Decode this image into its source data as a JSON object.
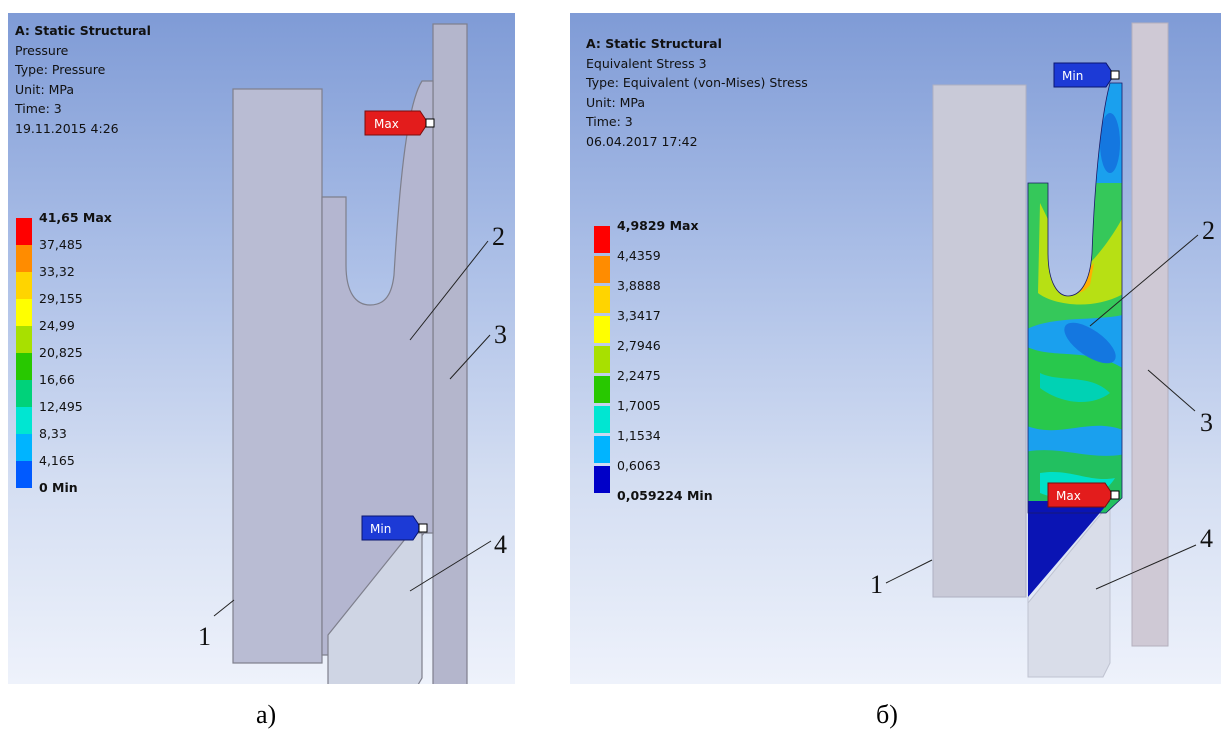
{
  "panel_a": {
    "title": "A: Static Structural",
    "lines": [
      "Pressure",
      "Type: Pressure",
      "Unit: MPa",
      "Time: 3",
      "19.11.2015 4:26"
    ],
    "legend": [
      "41,65 Max",
      "37,485",
      "33,32",
      "29,155",
      "24,99",
      "20,825",
      "16,66",
      "12,495",
      "8,33",
      "4,165",
      "0 Min"
    ],
    "max_tag": "Max",
    "min_tag": "Min",
    "part_labels": [
      "1",
      "2",
      "3",
      "4"
    ],
    "caption": "а)"
  },
  "panel_b": {
    "title": "A: Static Structural",
    "lines": [
      "Equivalent Stress 3",
      "Type: Equivalent (von-Mises) Stress",
      "Unit: MPa",
      "Time: 3",
      "06.04.2017 17:42"
    ],
    "legend": [
      "4,9829 Max",
      "4,4359",
      "3,8888",
      "3,3417",
      "2,7946",
      "2,2475",
      "1,7005",
      "1,1534",
      "0,6063",
      "0,059224 Min"
    ],
    "max_tag": "Max",
    "min_tag": "Min",
    "part_labels": [
      "1",
      "2",
      "3",
      "4"
    ],
    "caption": "б)"
  },
  "colors": {
    "scale": [
      "#ff0000",
      "#ff8c00",
      "#ffd400",
      "#ffff00",
      "#a8e000",
      "#28c800",
      "#00d27a",
      "#00e6d2",
      "#00b4ff",
      "#005aff",
      "#0000c8"
    ],
    "max_tag": "#e31c1c",
    "min_tag": "#1c3ad6"
  }
}
